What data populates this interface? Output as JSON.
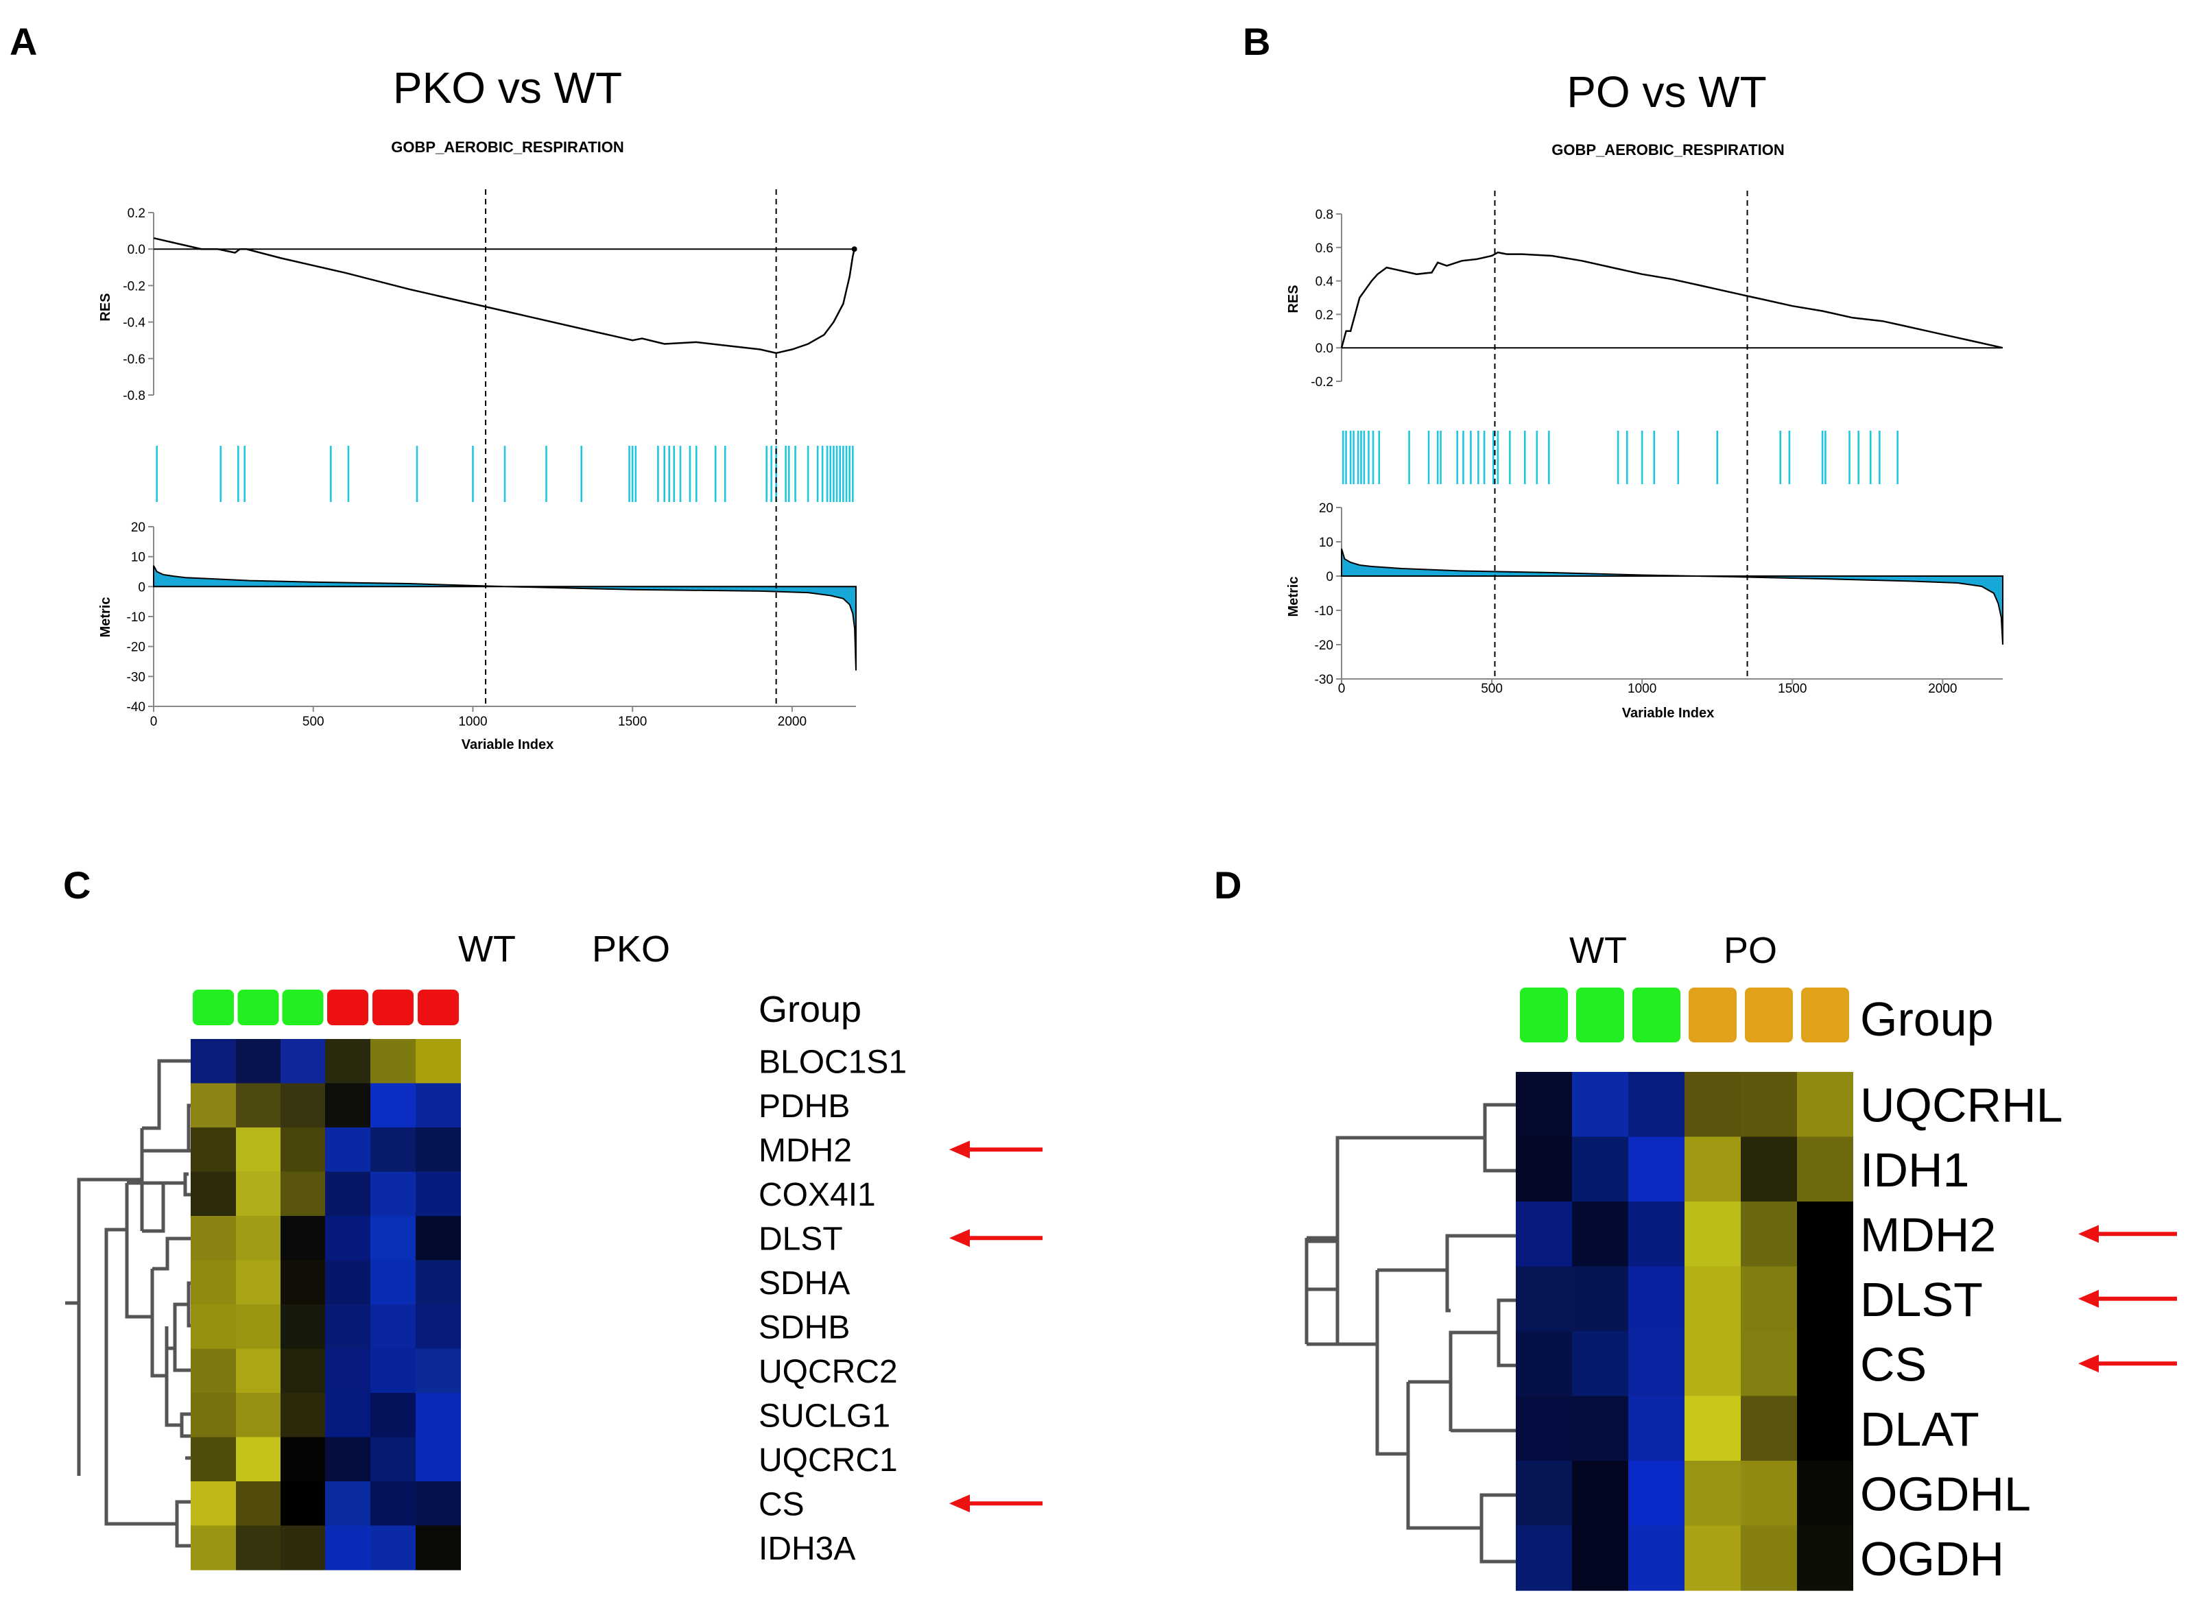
{
  "panels": {
    "A": {
      "letter": "A",
      "title": "PKO vs WT",
      "gene_set": "GOBP_AEROBIC_RESPIRATION",
      "res_ylabel": "RES",
      "metric_ylabel": "Metric",
      "xlabel": "Variable Index",
      "colors": {
        "hits": "#1fc6e0",
        "fill": "#17a8d8",
        "line": "#000000"
      }
    },
    "B": {
      "letter": "B",
      "title": "PO vs WT",
      "gene_set": "GOBP_AEROBIC_RESPIRATION",
      "res_ylabel": "RES",
      "metric_ylabel": "Metric",
      "xlabel": "Variable Index",
      "colors": {
        "hits": "#1fc6e0",
        "fill": "#17a8d8",
        "line": "#000000"
      }
    },
    "C": {
      "letter": "C",
      "group_row_label": "Group",
      "groups": [
        {
          "name": "WT",
          "color": "#22ee22",
          "n": 3
        },
        {
          "name": "PKO",
          "color": "#ee1111",
          "n": 3
        }
      ],
      "highlighted_genes": [
        "MDH2",
        "DLST",
        "CS"
      ],
      "arrow_color": "#ee1111"
    },
    "D": {
      "letter": "D",
      "group_row_label": "Group",
      "groups": [
        {
          "name": "WT",
          "color": "#22ee22",
          "n": 3
        },
        {
          "name": "PO",
          "color": "#e0a21a",
          "n": 3
        }
      ],
      "highlighted_genes": [
        "MDH2",
        "DLST",
        "CS"
      ],
      "arrow_color": "#ee1111"
    }
  },
  "chart_data": [
    {
      "id": "A",
      "type": "line",
      "title": "PKO vs WT",
      "subtitle": "GOBP_AEROBIC_RESPIRATION",
      "xlabel": "Variable Index",
      "xlim": [
        0,
        2200
      ],
      "xticks": [
        0,
        500,
        1000,
        1500,
        2000
      ],
      "res": {
        "ylabel": "RES",
        "ylim": [
          -0.8,
          0.2
        ],
        "yticks": [
          "0.2",
          "0.0",
          "-0.2",
          "-0.4",
          "-0.6",
          "-0.8"
        ],
        "x": [
          0,
          100,
          150,
          200,
          255,
          270,
          290,
          400,
          600,
          800,
          1000,
          1200,
          1400,
          1500,
          1530,
          1600,
          1700,
          1800,
          1900,
          1950,
          2000,
          2050,
          2100,
          2130,
          2160,
          2180,
          2190,
          2195
        ],
        "y": [
          0.06,
          0.02,
          0.0,
          0.0,
          -0.02,
          0.0,
          0.0,
          -0.05,
          -0.13,
          -0.22,
          -0.3,
          -0.38,
          -0.46,
          -0.5,
          -0.49,
          -0.52,
          -0.51,
          -0.53,
          -0.55,
          -0.57,
          -0.55,
          -0.52,
          -0.47,
          -0.4,
          -0.3,
          -0.15,
          -0.04,
          0.0
        ]
      },
      "dashed_x": [
        1040,
        1950
      ],
      "hits": [
        10,
        210,
        265,
        285,
        555,
        610,
        825,
        1000,
        1100,
        1230,
        1340,
        1490,
        1500,
        1510,
        1580,
        1600,
        1615,
        1630,
        1650,
        1680,
        1700,
        1760,
        1790,
        1920,
        1935,
        1950,
        1980,
        1990,
        2010,
        2050,
        2080,
        2095,
        2110,
        2120,
        2130,
        2140,
        2150,
        2160,
        2170,
        2180,
        2190
      ],
      "metric": {
        "ylabel": "Metric",
        "ylim": [
          -40,
          20
        ],
        "yticks": [
          "20",
          "10",
          "0",
          "-10",
          "-20",
          "-30",
          "-40"
        ],
        "x": [
          0,
          10,
          30,
          60,
          100,
          200,
          300,
          500,
          800,
          1100,
          1500,
          1900,
          2050,
          2120,
          2160,
          2180,
          2190,
          2196,
          2200
        ],
        "y": [
          7,
          5,
          4,
          3.5,
          3,
          2.5,
          2,
          1.5,
          1,
          0,
          -1,
          -1.5,
          -2,
          -3,
          -4,
          -6,
          -9,
          -14,
          -28
        ]
      }
    },
    {
      "id": "B",
      "type": "line",
      "title": "PO vs WT",
      "subtitle": "GOBP_AEROBIC_RESPIRATION",
      "xlabel": "Variable Index",
      "xlim": [
        0,
        2200
      ],
      "xticks": [
        0,
        500,
        1000,
        1500,
        2000
      ],
      "res": {
        "ylabel": "RES",
        "ylim": [
          -0.2,
          0.8
        ],
        "yticks": [
          "0.8",
          "0.6",
          "0.4",
          "0.2",
          "0.0",
          "-0.2"
        ],
        "x": [
          0,
          15,
          30,
          45,
          60,
          80,
          100,
          120,
          150,
          200,
          250,
          300,
          320,
          350,
          400,
          450,
          500,
          520,
          550,
          600,
          700,
          800,
          900,
          1000,
          1100,
          1200,
          1300,
          1350,
          1400,
          1500,
          1600,
          1700,
          1800,
          1850,
          1900,
          2000,
          2100,
          2200
        ],
        "y": [
          0.0,
          0.1,
          0.1,
          0.2,
          0.3,
          0.35,
          0.4,
          0.44,
          0.48,
          0.46,
          0.44,
          0.45,
          0.51,
          0.49,
          0.52,
          0.53,
          0.55,
          0.57,
          0.56,
          0.56,
          0.55,
          0.52,
          0.48,
          0.44,
          0.41,
          0.37,
          0.33,
          0.31,
          0.29,
          0.25,
          0.22,
          0.18,
          0.16,
          0.14,
          0.12,
          0.08,
          0.04,
          0.0
        ]
      },
      "dashed_x": [
        510,
        1350
      ],
      "hits": [
        5,
        15,
        30,
        40,
        55,
        65,
        75,
        90,
        105,
        125,
        225,
        290,
        320,
        330,
        385,
        405,
        430,
        455,
        475,
        505,
        520,
        560,
        610,
        650,
        690,
        920,
        950,
        1000,
        1040,
        1120,
        1250,
        1460,
        1490,
        1600,
        1610,
        1690,
        1720,
        1760,
        1790,
        1850
      ],
      "metric": {
        "ylabel": "Metric",
        "ylim": [
          -30,
          20
        ],
        "yticks": [
          "20",
          "10",
          "0",
          "-10",
          "-20",
          "-30"
        ],
        "x": [
          0,
          10,
          30,
          60,
          100,
          200,
          400,
          700,
          1000,
          1300,
          1600,
          1900,
          2050,
          2130,
          2170,
          2185,
          2195,
          2200
        ],
        "y": [
          8,
          5,
          4,
          3.2,
          2.8,
          2.2,
          1.5,
          1,
          0.3,
          -0.2,
          -0.8,
          -1.5,
          -2,
          -3,
          -5,
          -8,
          -12,
          -20
        ]
      }
    },
    {
      "id": "C",
      "type": "heatmap",
      "column_groups": [
        "WT",
        "PKO"
      ],
      "row_labels": [
        "BLOC1S1",
        "PDHB",
        "MDH2",
        "COX4I1",
        "DLST",
        "SDHA",
        "SDHB",
        "UQCRC2",
        "SUCLG1",
        "UQCRC1",
        "CS",
        "IDH3A"
      ],
      "colors": [
        [
          "#0c1c7a",
          "#07124e",
          "#0d279a",
          "#292a0e",
          "#7d7a10",
          "#aaa10a"
        ],
        [
          "#8c8415",
          "#4e4910",
          "#383510",
          "#0e0e0a",
          "#0b2dc2",
          "#0a2599"
        ],
        [
          "#3f3a0a",
          "#b8b71a",
          "#4a460b",
          "#0a28a4",
          "#081a6a",
          "#061355"
        ],
        [
          "#2d2b0a",
          "#b0ae18",
          "#5a550d",
          "#061766",
          "#0a2aa6",
          "#061c80"
        ],
        [
          "#8c8412",
          "#a09c14",
          "#0a0a08",
          "#061a7e",
          "#0a2fb8",
          "#03092f"
        ],
        [
          "#8f8a10",
          "#a8a415",
          "#120f06",
          "#061668",
          "#0a2bb3",
          "#061c70"
        ],
        [
          "#96910f",
          "#9b9612",
          "#161a0b",
          "#071a75",
          "#0925a0",
          "#081b7c"
        ],
        [
          "#7f7a10",
          "#aaa614",
          "#23220a",
          "#061a80",
          "#07239a",
          "#0b2a95"
        ],
        [
          "#77720e",
          "#959012",
          "#2d2a0b",
          "#061b80",
          "#05115a",
          "#0a2ab8"
        ],
        [
          "#514e0c",
          "#c2c21a",
          "#050503",
          "#040d3d",
          "#061a70",
          "#0a2ab8"
        ],
        [
          "#bdb818",
          "#514c0c",
          "#000000",
          "#0a2aa0",
          "#06135c",
          "#06114d"
        ],
        [
          "#9a9512",
          "#36340c",
          "#2e2c0d",
          "#0a2bb8",
          "#0a2aa8",
          "#0a0a06"
        ]
      ]
    },
    {
      "id": "D",
      "type": "heatmap",
      "column_groups": [
        "WT",
        "PO"
      ],
      "row_labels": [
        "UQCRHL",
        "IDH1",
        "MDH2",
        "DLST",
        "CS",
        "DLAT",
        "OGDHL",
        "OGDH"
      ],
      "colors": [
        [
          "#040a2e",
          "#0a2aa8",
          "#071d80",
          "#5a540d",
          "#5d580c",
          "#908a12"
        ],
        [
          "#030829",
          "#061a6c",
          "#0a2ac0",
          "#a09a12",
          "#29270a",
          "#6e6a10"
        ],
        [
          "#061a80",
          "#030a33",
          "#061c80",
          "#bcbc18",
          "#6c680f",
          "#000000"
        ],
        [
          "#061555",
          "#061455",
          "#0923a0",
          "#b3b016",
          "#817d10",
          "#000000"
        ],
        [
          "#050f48",
          "#061a6c",
          "#0a23a0",
          "#b4b016",
          "#828010",
          "#000000"
        ],
        [
          "#040c40",
          "#050d3c",
          "#0a26a8",
          "#c8c818",
          "#5a550d",
          "#000000"
        ],
        [
          "#061555",
          "#030620",
          "#0a2ac8",
          "#9a9414",
          "#918b12",
          "#0a0a05"
        ],
        [
          "#061a70",
          "#030620",
          "#0a2ab8",
          "#a8a214",
          "#858010",
          "#0e0d06"
        ]
      ]
    }
  ]
}
